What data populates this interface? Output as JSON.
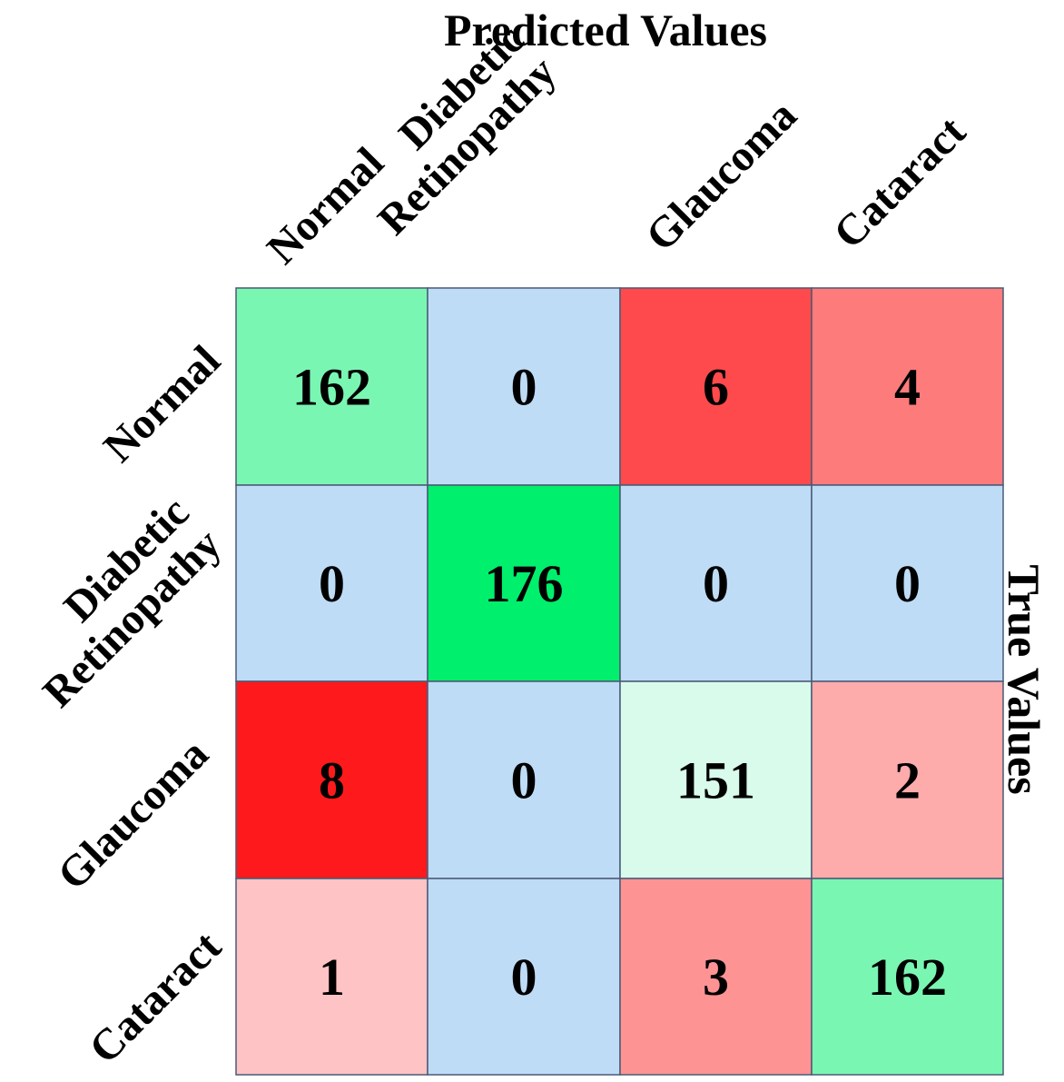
{
  "chart_data": {
    "type": "heatmap",
    "title": "",
    "xlabel": "Predicted Values",
    "ylabel": "True Values",
    "x_labels": [
      [
        "Normal"
      ],
      [
        "Diabetic",
        "Retinopathy"
      ],
      [
        "Glaucoma"
      ],
      [
        "Cataract"
      ]
    ],
    "y_labels": [
      [
        "Normal"
      ],
      [
        "Diabetic",
        "Retinopathy"
      ],
      [
        "Glaucoma"
      ],
      [
        "Cataract"
      ]
    ],
    "matrix": [
      [
        162,
        0,
        6,
        4
      ],
      [
        0,
        176,
        0,
        0
      ],
      [
        8,
        0,
        151,
        2
      ],
      [
        1,
        0,
        3,
        162
      ]
    ],
    "colors": {
      "diagonal_scale": [
        "#d9fbeb",
        "#00ef6c"
      ],
      "zero": "#bfdcf7",
      "error_scale": [
        "#fec3c4",
        "#fe1a1c"
      ],
      "grid_line": "#4a5a75"
    }
  }
}
